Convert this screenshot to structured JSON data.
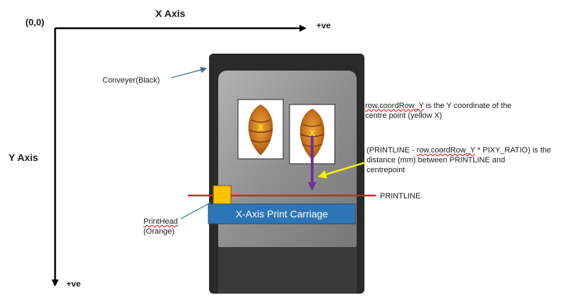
{
  "axes": {
    "origin_label": "(0,0)",
    "x_axis_label": "X Axis",
    "x_positive_label": "+ve",
    "y_axis_label": "Y Axis",
    "y_positive_label": "+ve"
  },
  "labels": {
    "conveyor": "Conveyer(Black)",
    "printhead_line1": "PrintHead",
    "printhead_line2": "(Orange)",
    "carriage": "X-Axis Print Carriage",
    "printline": "PRINTLINE",
    "coord_note": {
      "line1_code": "row.coordRow_Y",
      "line1_rest": " is the Y coordinate of the",
      "line2": "centre point (yellow X)"
    },
    "distance_note": {
      "line1_start": "(PRINTLINE - ",
      "line1_code": "row.coordRow_Y",
      "line1_rest": " * PIXY_RATIO) is the",
      "line2": "distance (mm) between PRINTLINE and",
      "line3": "centrepoint"
    },
    "center_marks": [
      "X",
      "X"
    ]
  },
  "colors": {
    "axis": "#000000",
    "conveyor": "#2a2a2a",
    "belt": "#9a9a9a",
    "printline": "#e02020",
    "carriage": "#2e75b6",
    "printhead": "#ffc000",
    "measure_arrow": "#7030a0",
    "pointer_arrow": "#f2f20a",
    "callout_line": "#2e6a9a",
    "center_mark": "#f5e600"
  }
}
